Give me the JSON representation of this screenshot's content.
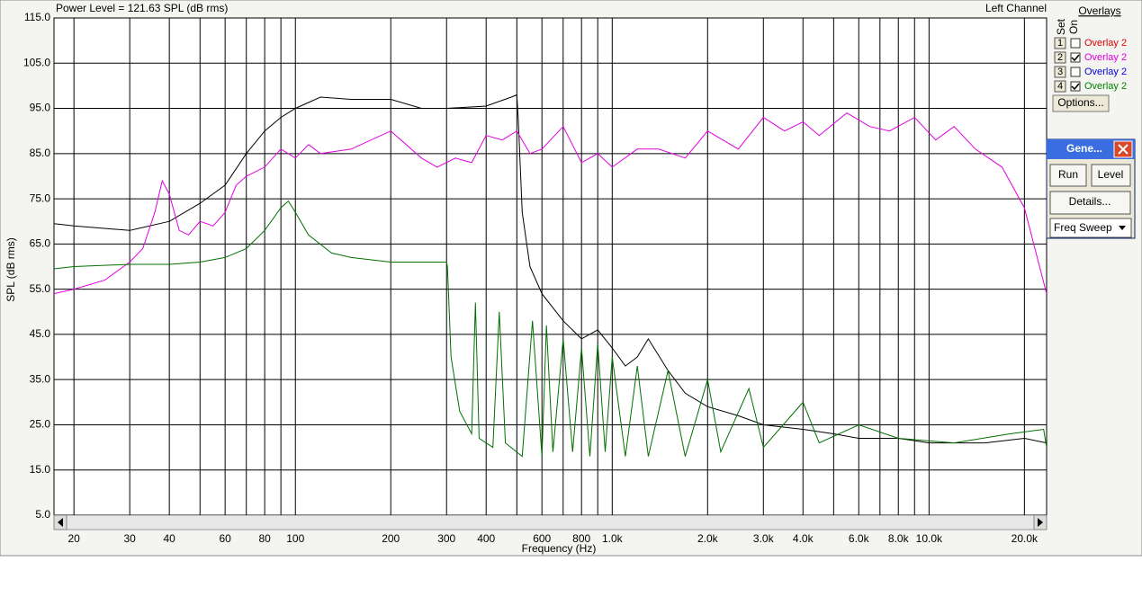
{
  "header": {
    "power_level": "Power Level = 121.63 SPL (dB rms)",
    "channel": "Left Channel"
  },
  "chart_data": {
    "type": "line",
    "xscale": "log",
    "grid": true,
    "xlabel": "Frequency (Hz)",
    "ylabel": "SPL (dB rms)",
    "xlim": [
      17.3,
      23500
    ],
    "ylim": [
      5,
      115
    ],
    "yticks": [
      {
        "value": 5,
        "label": "5.0"
      },
      {
        "value": 15,
        "label": "15.0"
      },
      {
        "value": 25,
        "label": "25.0"
      },
      {
        "value": 35,
        "label": "35.0"
      },
      {
        "value": 45,
        "label": "45.0"
      },
      {
        "value": 55,
        "label": "55.0"
      },
      {
        "value": 65,
        "label": "65.0"
      },
      {
        "value": 75,
        "label": "75.0"
      },
      {
        "value": 85,
        "label": "85.0"
      },
      {
        "value": 95,
        "label": "95.0"
      },
      {
        "value": 105,
        "label": "105.0"
      },
      {
        "value": 115,
        "label": "115.0"
      }
    ],
    "xticks": [
      20,
      30,
      40,
      60,
      80,
      100,
      200,
      300,
      400,
      600,
      800,
      {
        "value": 1000,
        "label": "1.0k"
      },
      {
        "value": 2000,
        "label": "2.0k"
      },
      {
        "value": 3000,
        "label": "3.0k"
      },
      {
        "value": 4000,
        "label": "4.0k"
      },
      {
        "value": 6000,
        "label": "6.0k"
      },
      {
        "value": 8000,
        "label": "8.0k"
      },
      {
        "value": 10000,
        "label": "10.0k"
      },
      {
        "value": 20000,
        "label": "20.0k"
      }
    ],
    "xgrid_minor": [
      50,
      70,
      90,
      500,
      700,
      900,
      5000,
      7000,
      9000
    ],
    "series": [
      {
        "color": "#000000",
        "x": [
          17.3,
          20,
          30,
          40,
          50,
          60,
          70,
          80,
          90,
          100,
          120,
          150,
          200,
          250,
          300,
          400,
          480,
          500,
          505,
          520,
          550,
          600,
          700,
          800,
          900,
          1000,
          1100,
          1200,
          1300,
          1500,
          1700,
          2000,
          2500,
          3000,
          4000,
          5000,
          6000,
          8000,
          10000,
          12000,
          15000,
          20000,
          23500
        ],
        "values": [
          69.5,
          69,
          68,
          70,
          74,
          78,
          85,
          90,
          93,
          95,
          97.5,
          97,
          97,
          95,
          95,
          95.5,
          97.5,
          98,
          93,
          72,
          60,
          54,
          48,
          44,
          46,
          42,
          38,
          40,
          44,
          37,
          32,
          29,
          27,
          25,
          24,
          23,
          22,
          22,
          21,
          21,
          21,
          22,
          21
        ]
      },
      {
        "color": "#e000e0",
        "x": [
          17.3,
          20,
          25,
          30,
          33,
          36,
          38,
          40,
          43,
          46,
          50,
          55,
          60,
          65,
          70,
          80,
          90,
          100,
          110,
          120,
          150,
          200,
          250,
          280,
          320,
          360,
          400,
          450,
          500,
          550,
          600,
          700,
          800,
          900,
          1000,
          1200,
          1400,
          1700,
          2000,
          2500,
          3000,
          3500,
          4000,
          4500,
          5500,
          6500,
          7500,
          9000,
          10500,
          12000,
          14000,
          17000,
          20000,
          23500
        ],
        "values": [
          54,
          55,
          57,
          61,
          64,
          72,
          79,
          76,
          68,
          67,
          70,
          69,
          72,
          78,
          80,
          82,
          86,
          84,
          87,
          85,
          86,
          90,
          84,
          82,
          84,
          83,
          89,
          88,
          90,
          85,
          86,
          91,
          83,
          85,
          82,
          86,
          86,
          84,
          90,
          86,
          93,
          90,
          92,
          89,
          94,
          91,
          90,
          93,
          88,
          91,
          86,
          82,
          73,
          54
        ]
      },
      {
        "color": "#007000",
        "x": [
          17.3,
          20,
          30,
          40,
          50,
          60,
          70,
          80,
          90,
          95,
          100,
          110,
          130,
          150,
          200,
          300,
          302,
          310,
          330,
          360,
          370,
          380,
          420,
          440,
          460,
          520,
          560,
          600,
          620,
          650,
          700,
          750,
          800,
          850,
          900,
          950,
          1000,
          1100,
          1200,
          1300,
          1500,
          1700,
          2000,
          2200,
          2700,
          3000,
          4000,
          4500,
          6000,
          8000,
          12000,
          18000,
          23000,
          23500
        ],
        "values": [
          59.5,
          60,
          60.5,
          60.5,
          61,
          62,
          64,
          68,
          73,
          74.5,
          72,
          67,
          63,
          62,
          61,
          61,
          60,
          40,
          28,
          23,
          52,
          22,
          20,
          50,
          21,
          18,
          48,
          18,
          47,
          19,
          44,
          19,
          42,
          18,
          43,
          19,
          40,
          18,
          38,
          18,
          37,
          18,
          35,
          19,
          33,
          20,
          30,
          21,
          25,
          22,
          21,
          23,
          24,
          20
        ]
      }
    ]
  },
  "overlays": {
    "title": "Overlays",
    "set_label": "Set",
    "on_label": "On",
    "rows": [
      {
        "set": "1",
        "label": "Overlay 2",
        "checked": false,
        "color": "#e00000"
      },
      {
        "set": "2",
        "label": "Overlay 2",
        "checked": true,
        "color": "#e000e0"
      },
      {
        "set": "3",
        "label": "Overlay 2",
        "checked": false,
        "color": "#0000e0"
      },
      {
        "set": "4",
        "label": "Overlay 2",
        "checked": true,
        "color": "#008000"
      }
    ],
    "options": "Options..."
  },
  "generator": {
    "title": "Gene...",
    "run": "Run",
    "level": "Level",
    "details": "Details...",
    "mode": "Freq Sweep"
  }
}
